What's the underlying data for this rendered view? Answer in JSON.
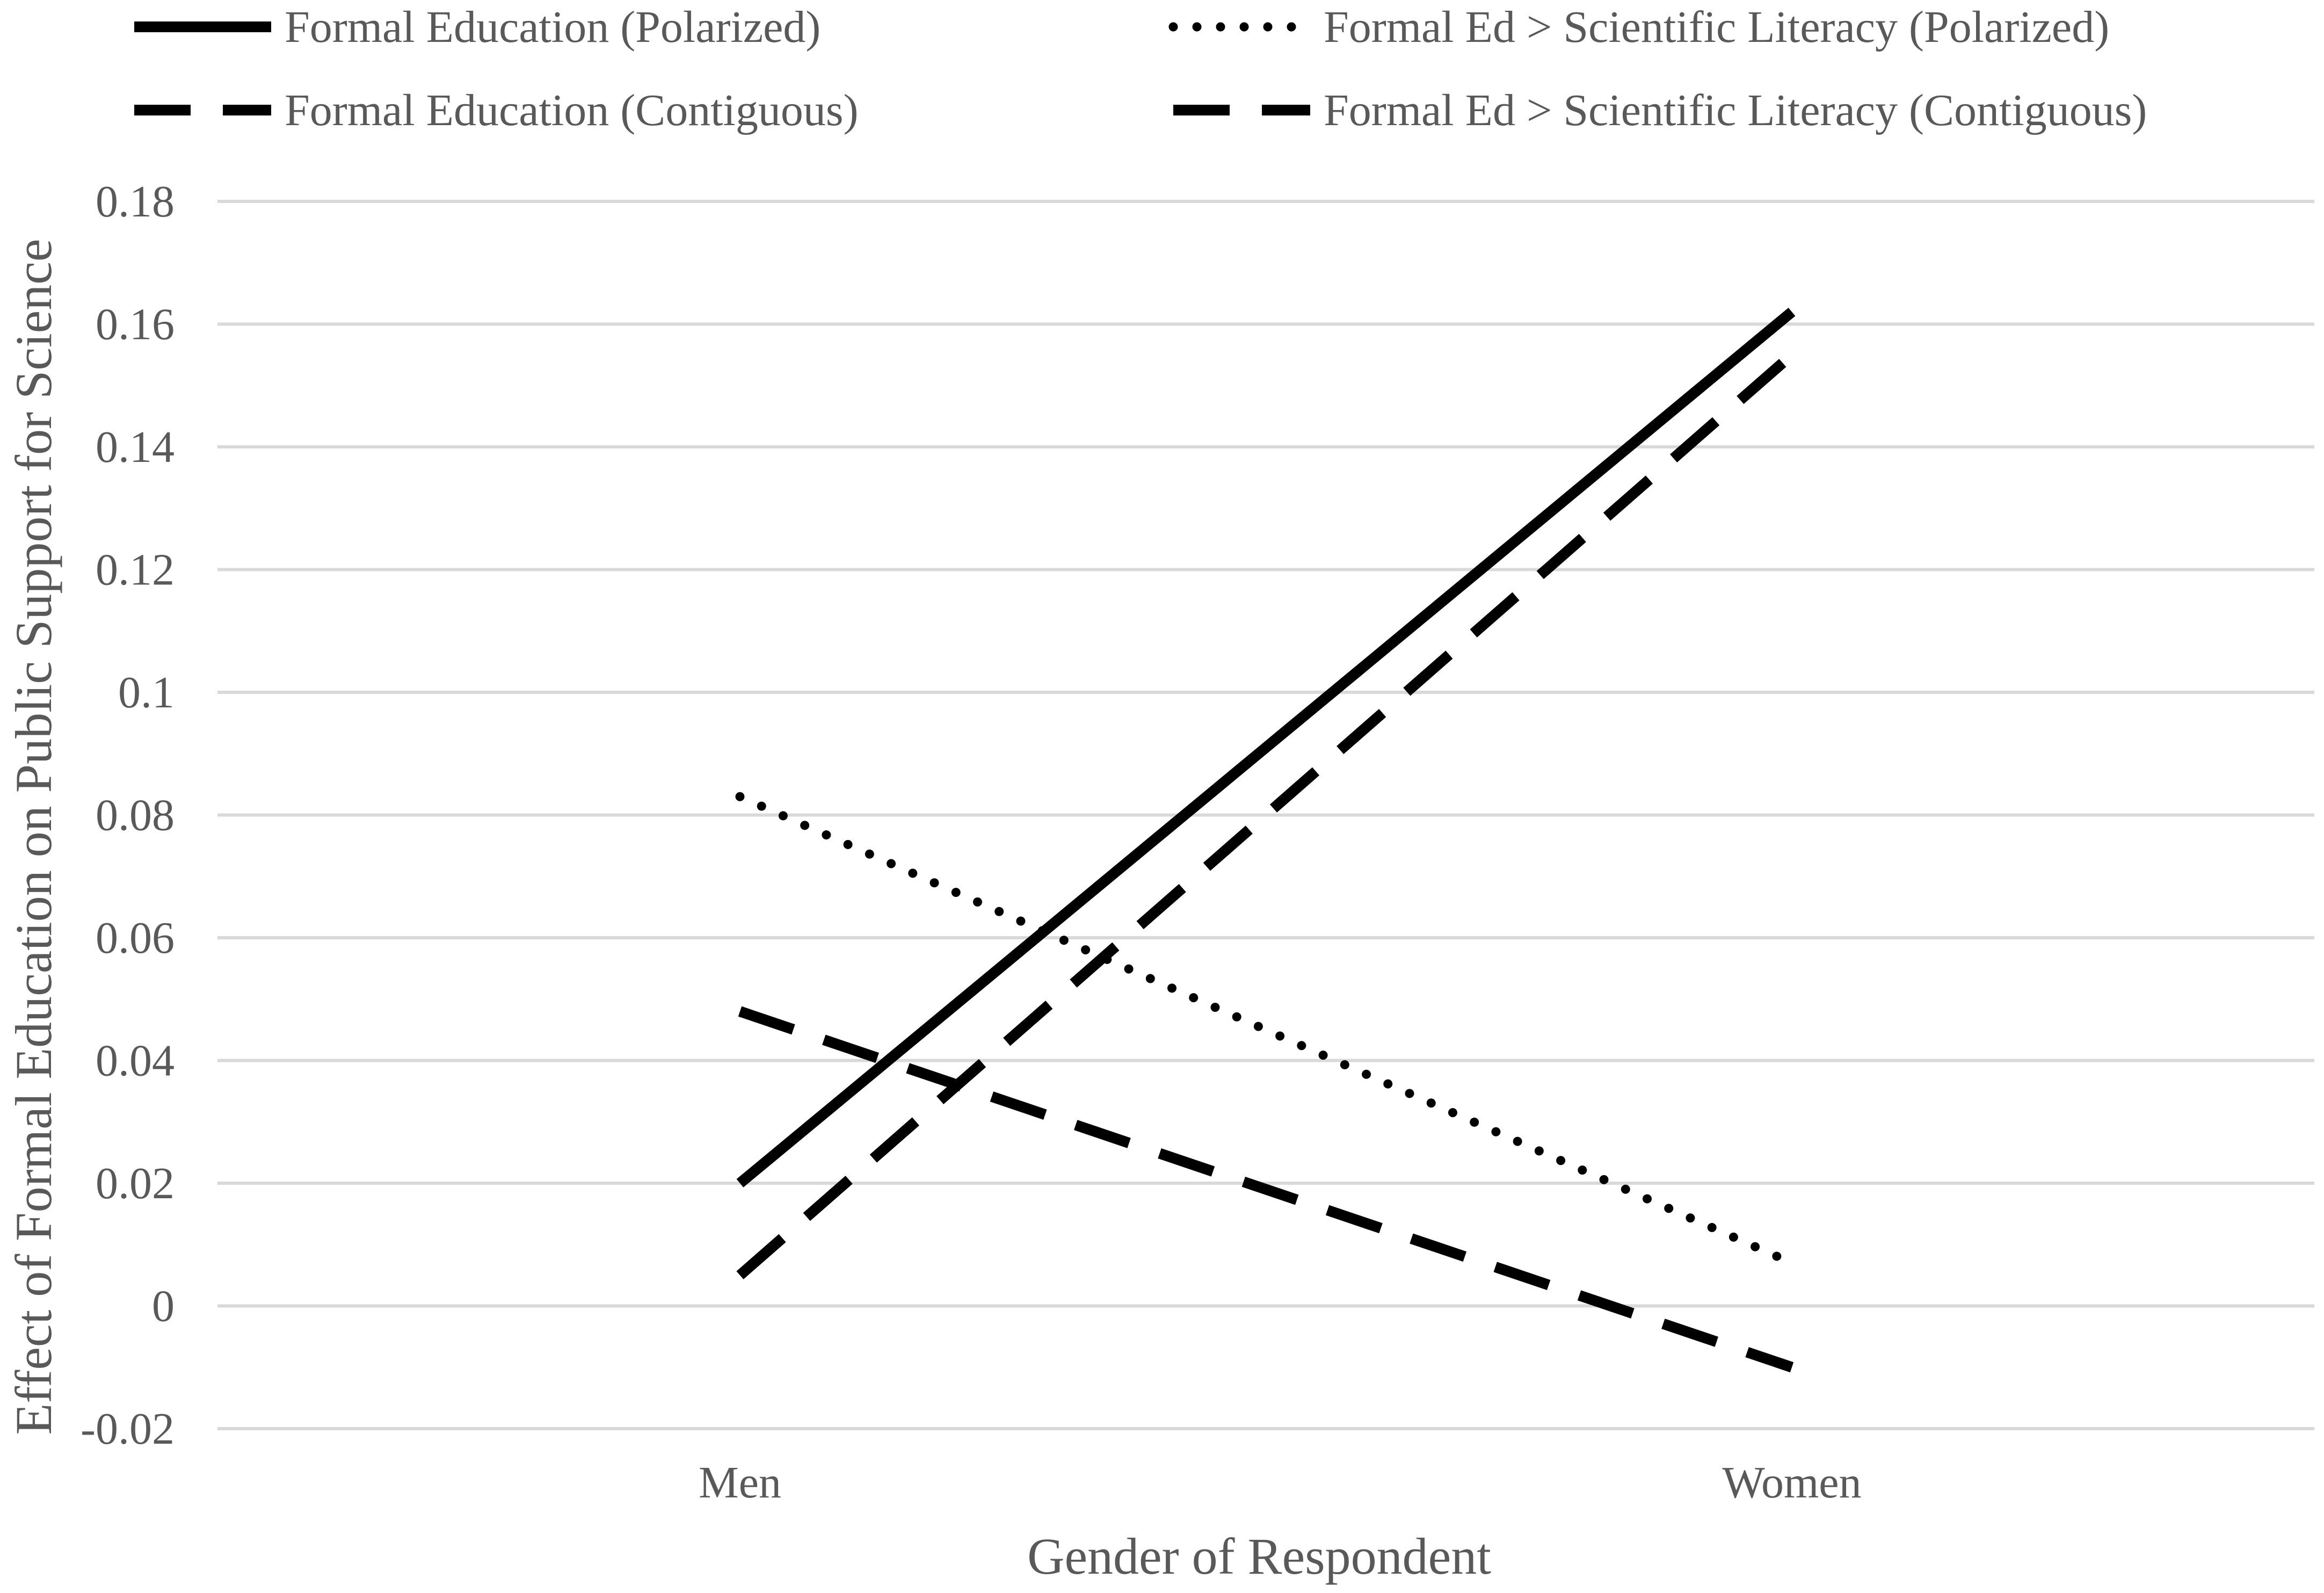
{
  "chart_data": {
    "type": "line",
    "title": "",
    "xlabel": "Gender of Respondent",
    "ylabel": "Effect of Formal Education on Public Support for Science",
    "categories": [
      "Men",
      "Women"
    ],
    "ylim": [
      -0.02,
      0.18
    ],
    "yticks": [
      "0.18",
      "0.16",
      "0.14",
      "0.12",
      "0.1",
      "0.08",
      "0.06",
      "0.04",
      "0.02",
      "0",
      "-0.02"
    ],
    "grid": true,
    "legend_position": "top",
    "series": [
      {
        "name": "Formal Education (Polarized)",
        "values": [
          0.02,
          0.162
        ],
        "style": "solid",
        "color": "#000000"
      },
      {
        "name": "Formal Ed > Scientific Literacy (Polarized)",
        "values": [
          0.083,
          0.007
        ],
        "style": "dotted",
        "color": "#000000"
      },
      {
        "name": "Formal Education (Contiguous)",
        "values": [
          0.005,
          0.155
        ],
        "style": "dashed",
        "color": "#000000"
      },
      {
        "name": "Formal Ed > Scientific Literacy (Contiguous)",
        "values": [
          0.048,
          -0.01
        ],
        "style": "dashed",
        "color": "#000000"
      }
    ]
  }
}
